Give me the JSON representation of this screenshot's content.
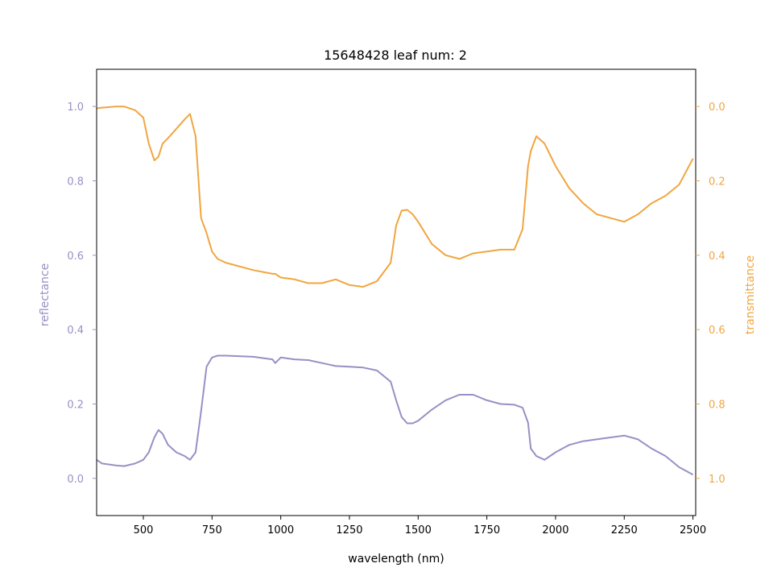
{
  "chart_data": {
    "type": "line",
    "title": "15648428 leaf num: 2",
    "xlabel": "wavelength (nm)",
    "ylabel_left": "reflectance",
    "ylabel_right": "transmittance",
    "xlim": [
      330,
      2510
    ],
    "ylim_left": [
      -0.1,
      1.1
    ],
    "ylim_right": [
      1.1,
      -0.1
    ],
    "right_axis_inverted": true,
    "grid": false,
    "x_ticks": [
      "500",
      "750",
      "1000",
      "1250",
      "1500",
      "1750",
      "2000",
      "2250",
      "2500"
    ],
    "y_ticks_left": [
      "0.0",
      "0.2",
      "0.4",
      "0.6",
      "0.8",
      "1.0"
    ],
    "y_ticks_right": [
      "0.0",
      "0.2",
      "0.4",
      "0.6",
      "0.8",
      "1.0"
    ],
    "colors": {
      "reflectance": "#9890c4",
      "transmittance": "#f0a640"
    },
    "series": [
      {
        "axis": "left",
        "color": "#9890c4",
        "x": [
          330,
          350,
          400,
          430,
          470,
          500,
          520,
          540,
          555,
          570,
          590,
          620,
          650,
          670,
          690,
          710,
          730,
          750,
          770,
          800,
          900,
          970,
          980,
          1000,
          1050,
          1100,
          1150,
          1200,
          1250,
          1300,
          1350,
          1400,
          1420,
          1440,
          1460,
          1480,
          1500,
          1550,
          1600,
          1650,
          1700,
          1750,
          1800,
          1850,
          1880,
          1900,
          1910,
          1930,
          1960,
          2000,
          2050,
          2100,
          2150,
          2200,
          2250,
          2300,
          2350,
          2400,
          2450,
          2500
        ],
        "values": [
          0.05,
          0.04,
          0.035,
          0.033,
          0.04,
          0.05,
          0.07,
          0.11,
          0.13,
          0.12,
          0.09,
          0.07,
          0.06,
          0.05,
          0.07,
          0.18,
          0.3,
          0.325,
          0.33,
          0.33,
          0.327,
          0.32,
          0.31,
          0.325,
          0.32,
          0.318,
          0.31,
          0.302,
          0.3,
          0.298,
          0.29,
          0.26,
          0.21,
          0.165,
          0.148,
          0.148,
          0.155,
          0.185,
          0.21,
          0.225,
          0.225,
          0.21,
          0.2,
          0.198,
          0.19,
          0.15,
          0.08,
          0.06,
          0.05,
          0.07,
          0.09,
          0.1,
          0.105,
          0.11,
          0.115,
          0.105,
          0.08,
          0.06,
          0.03,
          0.01
        ]
      },
      {
        "axis": "right",
        "color": "#f0a640",
        "x": [
          330,
          350,
          400,
          430,
          470,
          500,
          520,
          540,
          555,
          570,
          590,
          620,
          650,
          670,
          690,
          710,
          730,
          750,
          770,
          800,
          900,
          970,
          980,
          1000,
          1050,
          1100,
          1150,
          1200,
          1250,
          1300,
          1350,
          1400,
          1420,
          1440,
          1460,
          1480,
          1500,
          1550,
          1600,
          1650,
          1700,
          1750,
          1800,
          1850,
          1880,
          1900,
          1910,
          1930,
          1960,
          2000,
          2050,
          2100,
          2150,
          2200,
          2250,
          2300,
          2350,
          2400,
          2450,
          2500
        ],
        "values": [
          0.005,
          0.003,
          0.0,
          0.0,
          0.01,
          0.03,
          0.1,
          0.145,
          0.135,
          0.1,
          0.085,
          0.06,
          0.035,
          0.02,
          0.08,
          0.3,
          0.34,
          0.39,
          0.41,
          0.42,
          0.44,
          0.45,
          0.45,
          0.46,
          0.465,
          0.475,
          0.475,
          0.465,
          0.48,
          0.485,
          0.47,
          0.42,
          0.32,
          0.28,
          0.278,
          0.29,
          0.31,
          0.37,
          0.4,
          0.41,
          0.395,
          0.39,
          0.385,
          0.385,
          0.33,
          0.16,
          0.12,
          0.08,
          0.1,
          0.16,
          0.22,
          0.26,
          0.29,
          0.3,
          0.31,
          0.29,
          0.26,
          0.24,
          0.21,
          0.14
        ]
      }
    ]
  }
}
